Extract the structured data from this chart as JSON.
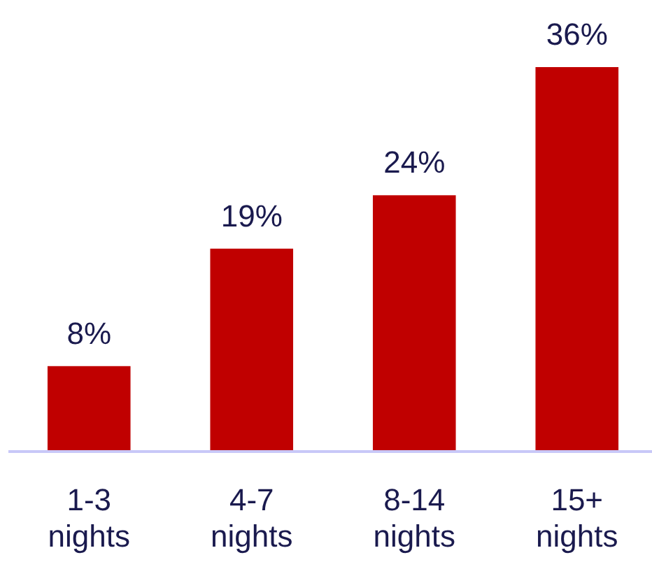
{
  "chart_data": {
    "type": "bar",
    "categories": [
      "1-3 nights",
      "4-7 nights",
      "8-14 nights",
      "15+ nights"
    ],
    "values": [
      8,
      19,
      24,
      36
    ],
    "color": "#c00000",
    "value_labels": [
      "8%",
      "19%",
      "24%",
      "36%"
    ]
  }
}
